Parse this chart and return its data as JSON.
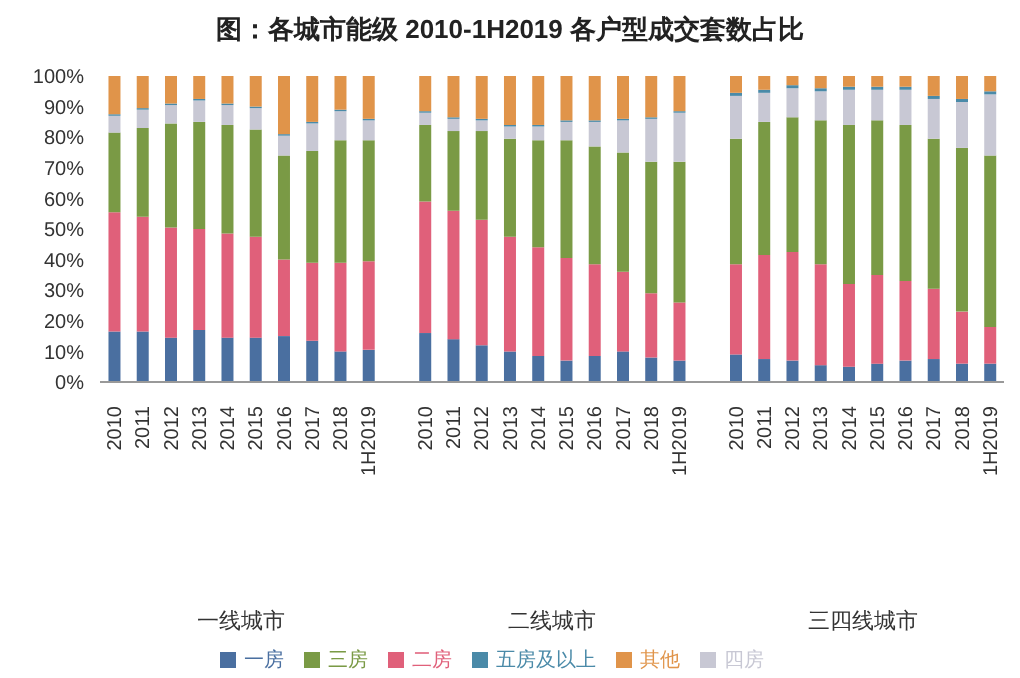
{
  "chart_data": {
    "type": "bar",
    "title": "图：各城市能级 2010-1H2019 各户型成交套数占比",
    "stacked": true,
    "categories": [
      "2010",
      "2011",
      "2012",
      "2013",
      "2014",
      "2015",
      "2016",
      "2017",
      "2018",
      "1H2019",
      null,
      "2010",
      "2011",
      "2012",
      "2013",
      "2014",
      "2015",
      "2016",
      "2017",
      "2018",
      "1H2019",
      null,
      "2010",
      "2011",
      "2012",
      "2013",
      "2014",
      "2015",
      "2016",
      "2017",
      "2018",
      "1H2019"
    ],
    "series": [
      {
        "name": "一房",
        "color": "#4a6fa0",
        "values": [
          16.5,
          16.5,
          14.5,
          17,
          14.5,
          14.5,
          15,
          13.5,
          10,
          10.5,
          null,
          16,
          14,
          12,
          10,
          8.5,
          7,
          8.5,
          10,
          8,
          7,
          null,
          9,
          7.5,
          7,
          5.5,
          5,
          6,
          7,
          7.5,
          6,
          6
        ]
      },
      {
        "name": "二房",
        "color": "#e0607a",
        "values": [
          39,
          37.5,
          36,
          33,
          34,
          33,
          25,
          25.5,
          29,
          29,
          null,
          43,
          42,
          41,
          37.5,
          35.5,
          33.5,
          30,
          26,
          21,
          19,
          null,
          29.5,
          34,
          35.5,
          33,
          27,
          29,
          26,
          23,
          17,
          12
        ]
      },
      {
        "name": "三房",
        "color": "#7a9a45",
        "values": [
          26,
          29,
          34,
          35,
          35.5,
          35,
          34,
          36.5,
          40,
          39.5,
          null,
          25,
          26,
          29,
          32,
          35,
          38.5,
          38.5,
          39,
          43,
          46,
          null,
          41,
          43.5,
          44,
          47,
          52,
          50.5,
          51,
          49,
          53.5,
          56
        ]
      },
      {
        "name": "四房",
        "color": "#c8c8d4",
        "values": [
          5.5,
          6,
          6,
          7,
          6.5,
          7,
          6.5,
          9,
          9.5,
          6.5,
          null,
          4,
          4,
          3.5,
          4,
          4.5,
          6,
          8,
          10.5,
          14,
          16,
          null,
          14,
          9.5,
          9.5,
          9.5,
          11.5,
          10,
          11.5,
          13,
          15,
          20
        ]
      },
      {
        "name": "五房及以上",
        "color": "#4a8aa8",
        "values": [
          0.5,
          0.5,
          0.5,
          0.5,
          0.5,
          0.5,
          0.5,
          0.5,
          0.5,
          0.5,
          null,
          0.5,
          0.5,
          0.5,
          0.5,
          0.5,
          0.5,
          0.5,
          0.5,
          0.5,
          0.5,
          null,
          1,
          1,
          1,
          1,
          1,
          1,
          1,
          1,
          1,
          1
        ]
      },
      {
        "name": "其他",
        "color": "#e0944a",
        "values": [
          12.5,
          10.5,
          9,
          7.5,
          9,
          10,
          19,
          15,
          11,
          14,
          null,
          11.5,
          13.5,
          14,
          16,
          16,
          14.5,
          14.5,
          14,
          13.5,
          11.5,
          null,
          5.5,
          4.5,
          3,
          4,
          3.5,
          3.5,
          3.5,
          6.5,
          7.5,
          5
        ]
      }
    ],
    "ylim": [
      0,
      100
    ],
    "yticks": [
      {
        "value": 0,
        "label": "0%"
      },
      {
        "value": 10,
        "label": "10%"
      },
      {
        "value": 20,
        "label": "20%"
      },
      {
        "value": 30,
        "label": "30%"
      },
      {
        "value": 40,
        "label": "40%"
      },
      {
        "value": 50,
        "label": "50%"
      },
      {
        "value": 60,
        "label": "60%"
      },
      {
        "value": 70,
        "label": "70%"
      },
      {
        "value": 80,
        "label": "80%"
      },
      {
        "value": 90,
        "label": "90%"
      },
      {
        "value": 100,
        "label": "100%"
      }
    ],
    "annotations": [
      "一线城市",
      "二线城市",
      "三四线城市"
    ],
    "grid": false,
    "legend": "bottom"
  }
}
